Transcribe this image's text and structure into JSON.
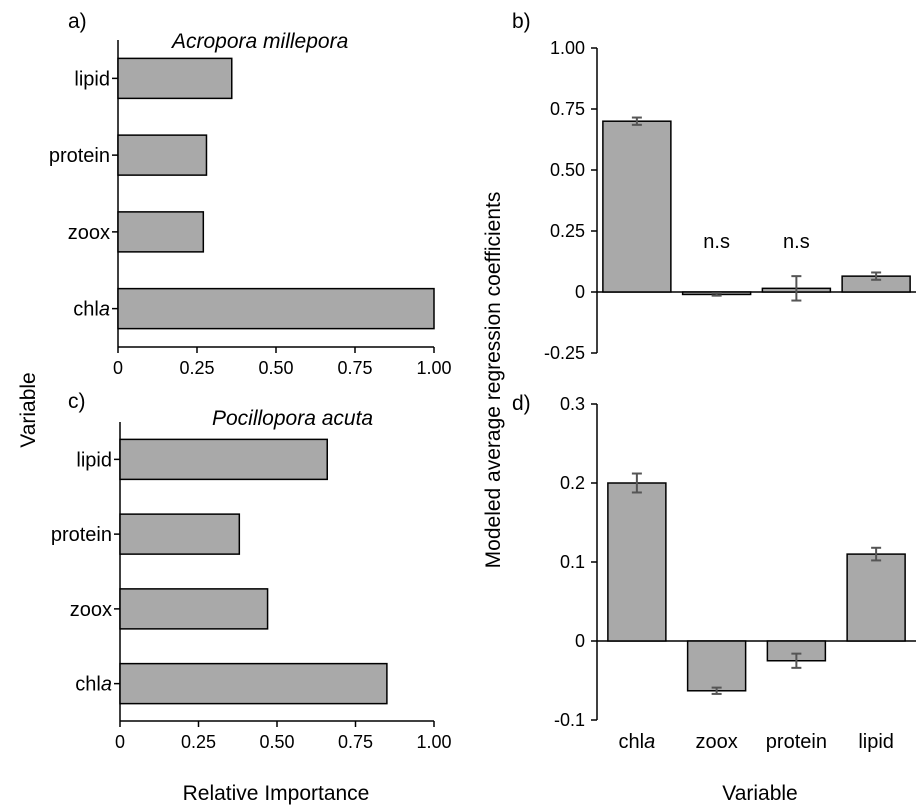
{
  "labels": {
    "y_axis_left": "Variable",
    "x_axis_left": "Relative Importance",
    "y_axis_right": "Modeled average regression coefficients",
    "x_axis_right": "Variable"
  },
  "chart_data": [
    {
      "panel": "a)",
      "type": "bar",
      "orientation": "horizontal",
      "title": "Acropora millepora",
      "categories": [
        "lipid",
        "protein",
        "zoox",
        "chla"
      ],
      "category_display": [
        [
          "lipid",
          ""
        ],
        [
          "protein",
          ""
        ],
        [
          "zoox",
          ""
        ],
        [
          "chl",
          "a"
        ]
      ],
      "values": [
        0.36,
        0.28,
        0.27,
        1.0
      ],
      "xlim": [
        0,
        1.0
      ],
      "xticks": [
        0,
        0.25,
        0.5,
        0.75,
        1.0
      ],
      "xtick_labels": [
        "0",
        "0.25",
        "0.50",
        "0.75",
        "1.00"
      ],
      "bar_color": "#a9a9a9"
    },
    {
      "panel": "b)",
      "type": "bar",
      "orientation": "vertical",
      "title": "",
      "categories": [
        "chla",
        "zoox",
        "protein",
        "lipid"
      ],
      "values": [
        0.7,
        -0.01,
        0.015,
        0.065
      ],
      "errors": [
        0.015,
        0.005,
        0.05,
        0.015
      ],
      "annotations": [
        "",
        "n.s",
        "n.s",
        ""
      ],
      "ylim": [
        -0.25,
        1.0
      ],
      "yticks": [
        -0.25,
        0,
        0.25,
        0.5,
        0.75,
        1.0
      ],
      "ytick_labels": [
        "-0.25",
        "0",
        "0.25",
        "0.50",
        "0.75",
        "1.00"
      ],
      "bar_color": "#a9a9a9"
    },
    {
      "panel": "c)",
      "type": "bar",
      "orientation": "horizontal",
      "title": "Pocillopora acuta",
      "categories": [
        "lipid",
        "protein",
        "zoox",
        "chla"
      ],
      "category_display": [
        [
          "lipid",
          ""
        ],
        [
          "protein",
          ""
        ],
        [
          "zoox",
          ""
        ],
        [
          "chl",
          "a"
        ]
      ],
      "values": [
        0.66,
        0.38,
        0.47,
        0.85
      ],
      "xlim": [
        0,
        1.0
      ],
      "xticks": [
        0,
        0.25,
        0.5,
        0.75,
        1.0
      ],
      "xtick_labels": [
        "0",
        "0.25",
        "0.50",
        "0.75",
        "1.00"
      ],
      "bar_color": "#a9a9a9"
    },
    {
      "panel": "d)",
      "type": "bar",
      "orientation": "vertical",
      "title": "",
      "categories": [
        "chla",
        "zoox",
        "protein",
        "lipid"
      ],
      "category_display": [
        [
          "chl",
          "a"
        ],
        [
          "zoox",
          ""
        ],
        [
          "protein",
          ""
        ],
        [
          "lipid",
          ""
        ]
      ],
      "values": [
        0.2,
        -0.063,
        -0.025,
        0.11
      ],
      "errors": [
        0.012,
        0.004,
        0.009,
        0.008
      ],
      "ylim": [
        -0.1,
        0.3
      ],
      "yticks": [
        -0.1,
        0,
        0.1,
        0.2,
        0.3
      ],
      "ytick_labels": [
        "-0.1",
        "0",
        "0.1",
        "0.2",
        "0.3"
      ],
      "bar_color": "#a9a9a9"
    }
  ]
}
